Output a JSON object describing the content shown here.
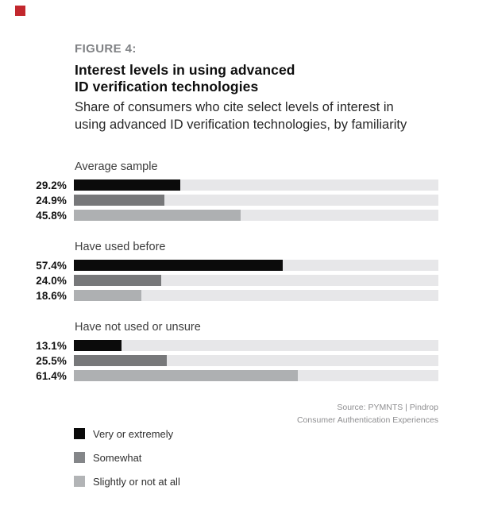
{
  "decorations": {
    "marker_color": "#c2272d"
  },
  "header": {
    "figure_label": "FIGURE 4:",
    "title_lines": [
      "Interest levels in using advanced",
      "ID verification technologies"
    ],
    "subtitle_lines": [
      "Share of consumers who cite select levels of interest in",
      "using advanced ID verification technologies, by familiarity"
    ]
  },
  "chart_data": {
    "type": "bar",
    "orientation": "horizontal",
    "value_axis": {
      "min": 0,
      "max": 100,
      "unit": "%"
    },
    "grid": false,
    "track_color": "#e7e7e9",
    "categories": [
      "Average sample",
      "Have used before",
      "Have not used or unsure"
    ],
    "series": [
      {
        "name": "Very or extremely",
        "color": "#0b0b0b",
        "values": [
          29.2,
          57.4,
          13.1
        ],
        "value_labels": [
          "29.2%",
          "57.4%",
          "13.1%"
        ]
      },
      {
        "name": "Somewhat",
        "color": "#77787a",
        "values": [
          24.9,
          24.0,
          25.5
        ],
        "value_labels": [
          "24.9%",
          "24.0%",
          "25.5%"
        ]
      },
      {
        "name": "Slightly or not at all",
        "color": "#aeb0b2",
        "values": [
          45.8,
          18.6,
          61.4
        ],
        "value_labels": [
          "45.8%",
          "18.6%",
          "61.4%"
        ]
      }
    ],
    "legend_position": "bottom-left"
  },
  "source": {
    "lines": [
      "Source: PYMNTS | Pindrop",
      "Consumer Authentication Experiences"
    ]
  },
  "legend": {
    "items": [
      {
        "label": "Very or extremely",
        "color": "#0a0a0a"
      },
      {
        "label": "Somewhat",
        "color": "#848689"
      },
      {
        "label": "Slightly or not at all",
        "color": "#b2b4b6"
      }
    ]
  }
}
